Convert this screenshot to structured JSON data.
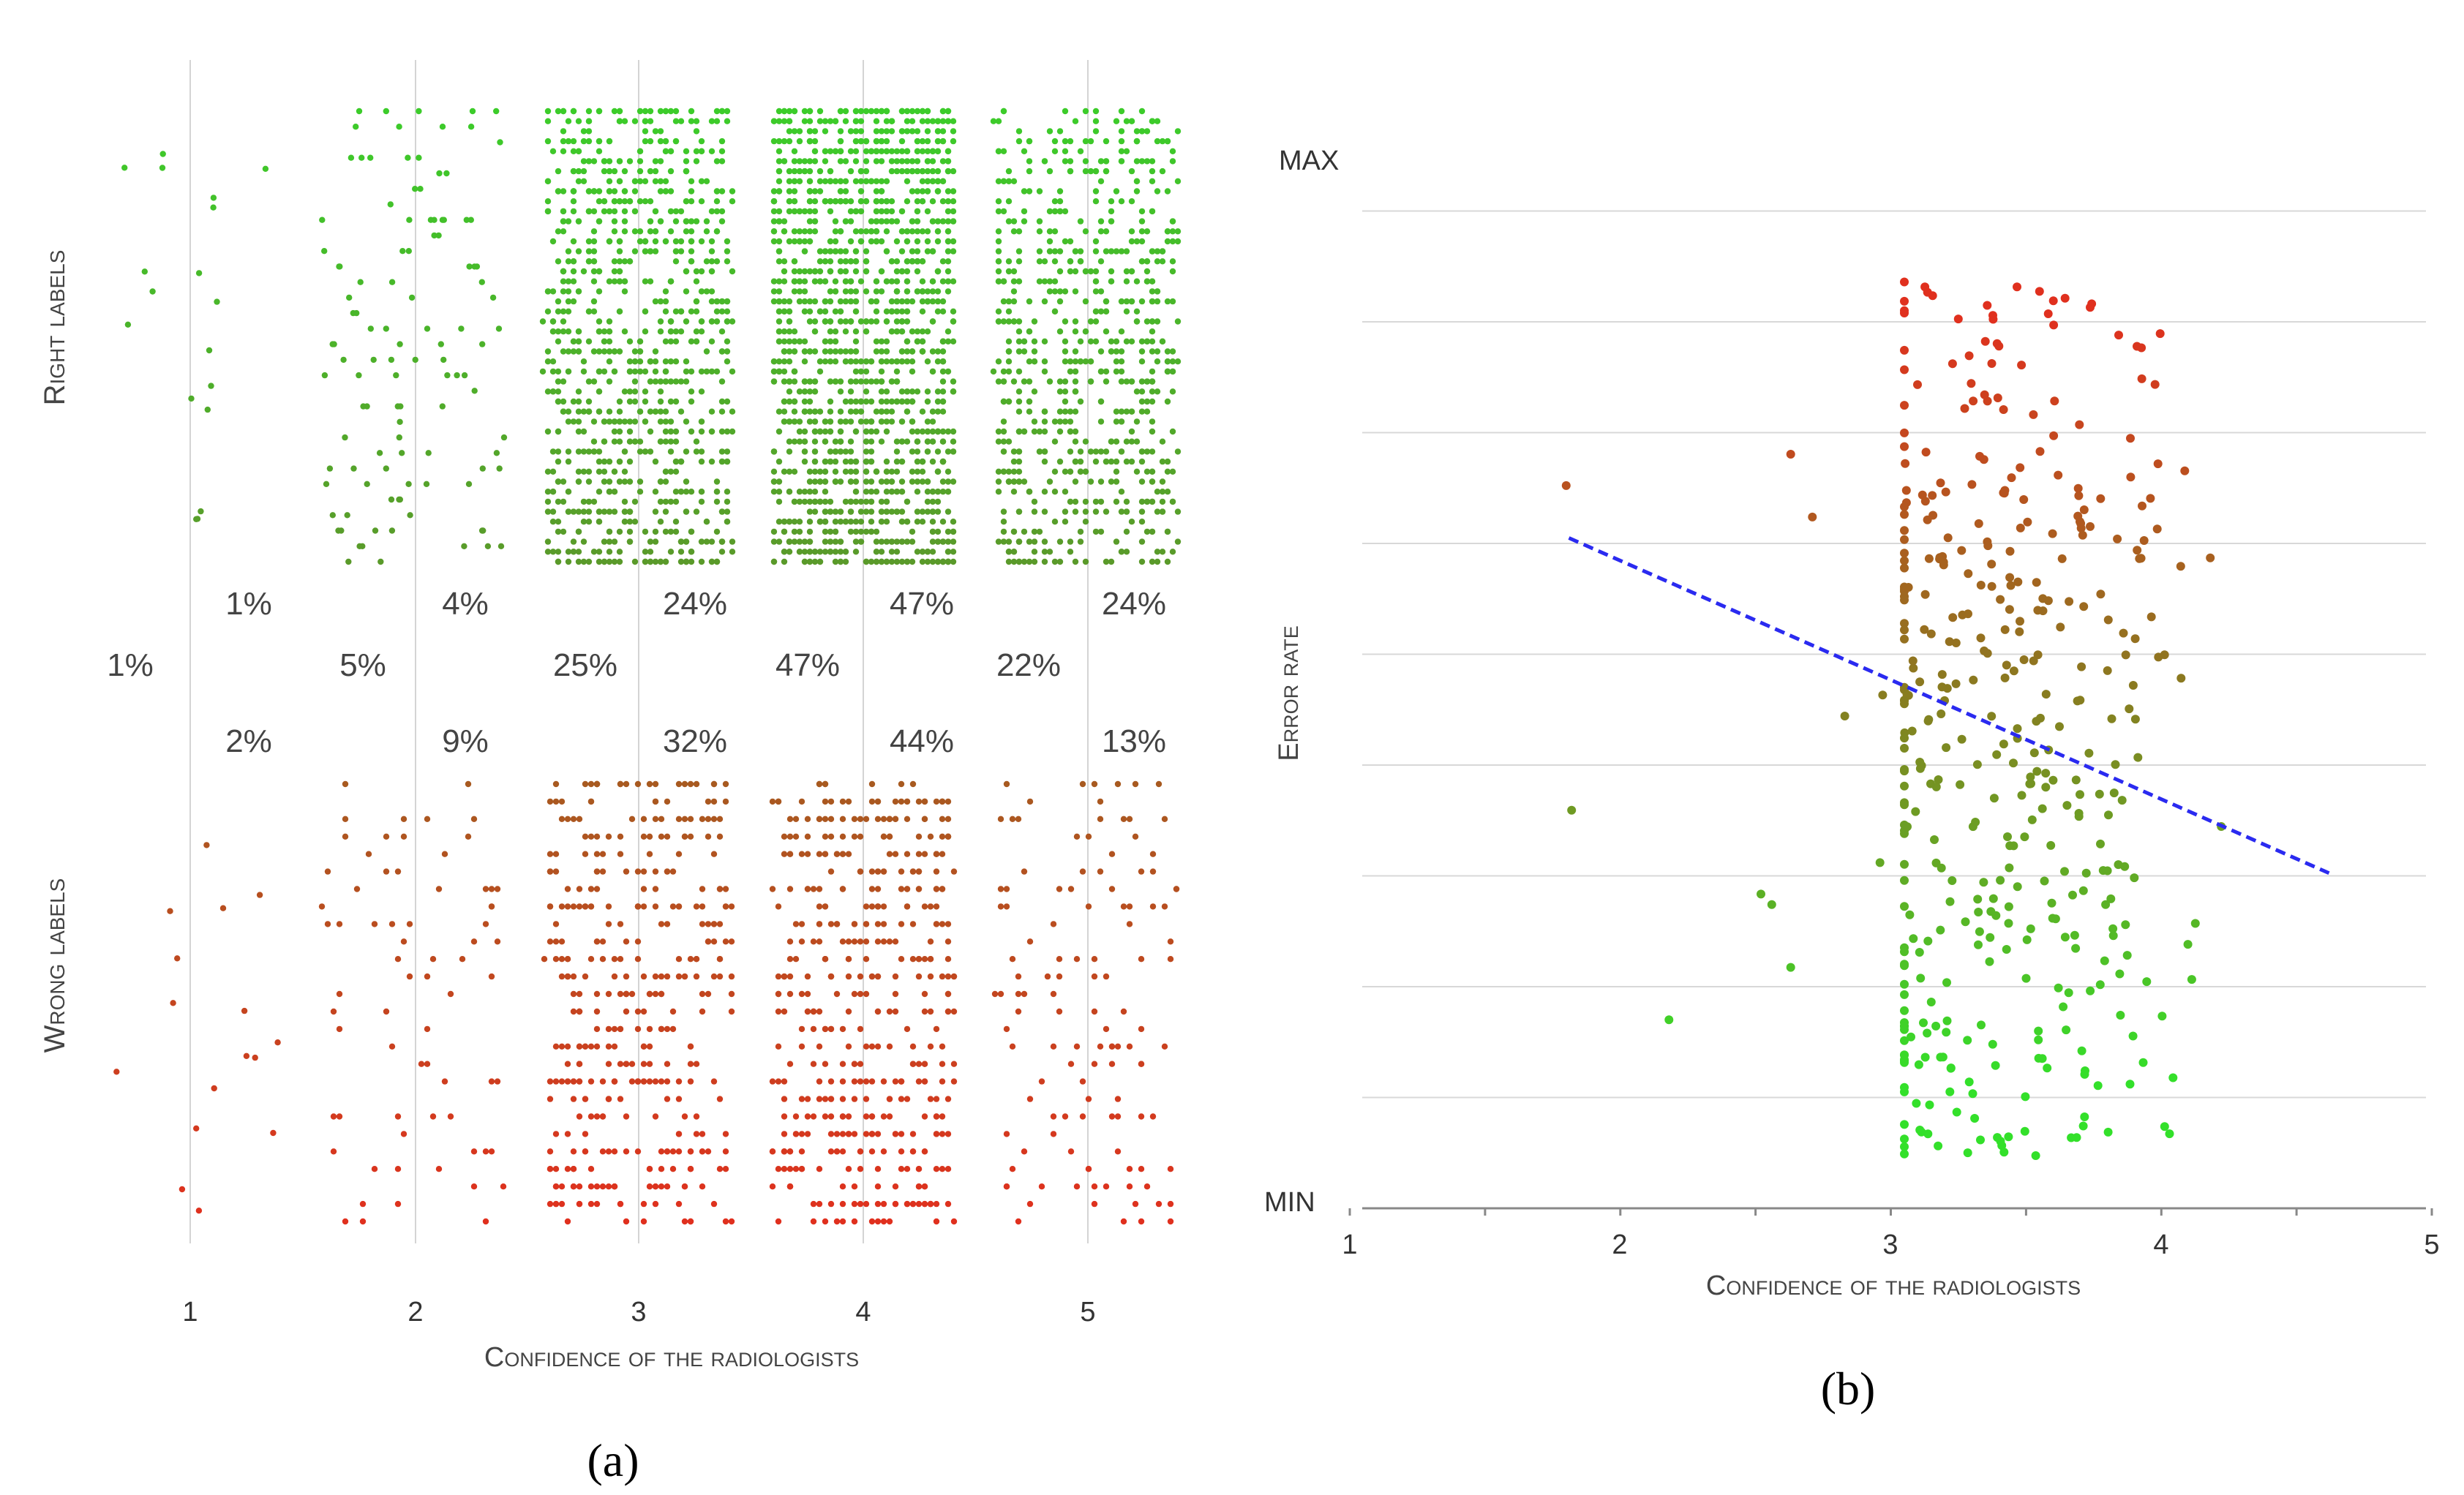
{
  "panel_a": {
    "caption": "(a)",
    "chart_data": {
      "type": "scatter",
      "xlabel": "Confidence of the radiologists",
      "row_labels": {
        "top": "Right labels",
        "bottom": "Wrong labels"
      },
      "categories": [
        "1",
        "2",
        "3",
        "4",
        "5"
      ],
      "right_label_pct": [
        "1%",
        "4%",
        "24%",
        "47%",
        "24%"
      ],
      "overall_pct": [
        "1%",
        "5%",
        "25%",
        "47%",
        "22%"
      ],
      "wrong_label_pct": [
        "2%",
        "9%",
        "32%",
        "44%",
        "13%"
      ],
      "dot_counts_right": [
        18,
        110,
        900,
        1500,
        700
      ],
      "dot_counts_wrong": [
        16,
        70,
        380,
        450,
        120
      ],
      "colors": {
        "right": "#3ccc2a",
        "right_dark": "#5a9a2a",
        "wrong": "#e0301e",
        "wrong_top": "#a85a20"
      }
    }
  },
  "panel_b": {
    "caption": "(b)",
    "chart_data": {
      "type": "scatter",
      "xlabel": "Confidence of the radiologists",
      "ylabel": "Error rate",
      "x_ticks": [
        "1",
        "2",
        "3",
        "4",
        "5"
      ],
      "xlim": [
        1,
        5
      ],
      "ylim": [
        0,
        1
      ],
      "y_tick_labels": {
        "max": "MAX",
        "min": "MIN"
      },
      "trend_line": {
        "x": [
          1.81,
          4.62
        ],
        "y": [
          0.64,
          0.32
        ],
        "color": "#2a2af0"
      },
      "outliers": [
        {
          "x": 1.8,
          "y": 0.69
        },
        {
          "x": 2.63,
          "y": 0.72
        },
        {
          "x": 2.71,
          "y": 0.66
        },
        {
          "x": 1.82,
          "y": 0.38
        },
        {
          "x": 2.18,
          "y": 0.18
        },
        {
          "x": 2.52,
          "y": 0.3
        },
        {
          "x": 2.56,
          "y": 0.29
        },
        {
          "x": 2.63,
          "y": 0.23
        },
        {
          "x": 2.83,
          "y": 0.47
        },
        {
          "x": 2.96,
          "y": 0.33
        },
        {
          "x": 2.97,
          "y": 0.49
        }
      ],
      "dot_count": 420,
      "colors": {
        "high": "#e0301e",
        "mid": "#8a7a20",
        "low": "#33e02a"
      }
    }
  }
}
